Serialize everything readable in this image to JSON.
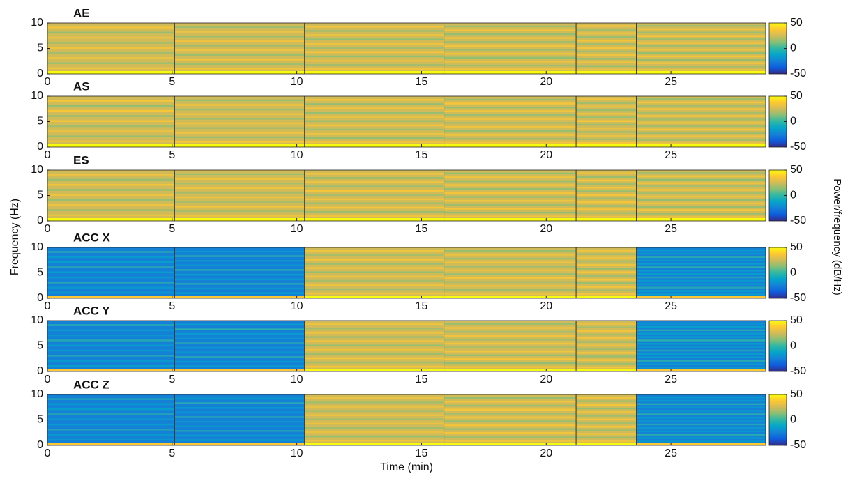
{
  "ylabel": "Frequency (Hz)",
  "colorbar_label": "Power/frequency (dB/Hz)",
  "colormap": [
    "#352a87",
    "#0f5cdd",
    "#1481d6",
    "#06a4ca",
    "#2eb7a4",
    "#87bf77",
    "#d1bb59",
    "#fec832",
    "#f9fb0e"
  ],
  "chart_data": [
    {
      "type": "spectrogram",
      "title": "AE",
      "xlim": [
        0,
        28.8
      ],
      "xticks": [
        0,
        5,
        10,
        15,
        20,
        25
      ],
      "ylim": [
        0,
        10
      ],
      "yticks": [
        0,
        5,
        10
      ],
      "clim": [
        -50,
        50
      ],
      "cticks": [
        -50,
        0,
        50
      ]
    },
    {
      "type": "spectrogram",
      "title": "AS",
      "xlim": [
        0,
        28.8
      ],
      "xticks": [
        0,
        5,
        10,
        15,
        20,
        25
      ],
      "ylim": [
        0,
        10
      ],
      "yticks": [
        0,
        5,
        10
      ],
      "clim": [
        -50,
        50
      ],
      "cticks": [
        -50,
        0,
        50
      ]
    },
    {
      "type": "spectrogram",
      "title": "ES",
      "xlim": [
        0,
        28.8
      ],
      "xticks": [
        0,
        5,
        10,
        15,
        20,
        25
      ],
      "ylim": [
        0,
        10
      ],
      "yticks": [
        0,
        5,
        10
      ],
      "clim": [
        -50,
        50
      ],
      "cticks": [
        -50,
        0,
        50
      ]
    },
    {
      "type": "spectrogram",
      "title": "ACC X",
      "xlim": [
        0,
        28.8
      ],
      "xticks": [
        0,
        5,
        10,
        15,
        20,
        25
      ],
      "ylim": [
        0,
        10
      ],
      "yticks": [
        0,
        5,
        10
      ],
      "clim": [
        -50,
        50
      ],
      "cticks": [
        -50,
        0,
        50
      ]
    },
    {
      "type": "spectrogram",
      "title": "ACC Y",
      "xlim": [
        0,
        28.8
      ],
      "xticks": [
        0,
        5,
        10,
        15,
        20,
        25
      ],
      "ylim": [
        0,
        10
      ],
      "yticks": [
        0,
        5,
        10
      ],
      "clim": [
        -50,
        50
      ],
      "cticks": [
        -50,
        0,
        50
      ]
    },
    {
      "type": "spectrogram",
      "title": "ACC Z",
      "xlim": [
        0,
        28.8
      ],
      "xticks": [
        0,
        5,
        10,
        15,
        20,
        25
      ],
      "ylim": [
        0,
        10
      ],
      "yticks": [
        0,
        5,
        10
      ],
      "clim": [
        -50,
        50
      ],
      "cticks": [
        -50,
        0,
        50
      ],
      "xlabel": "Time (min)"
    }
  ]
}
